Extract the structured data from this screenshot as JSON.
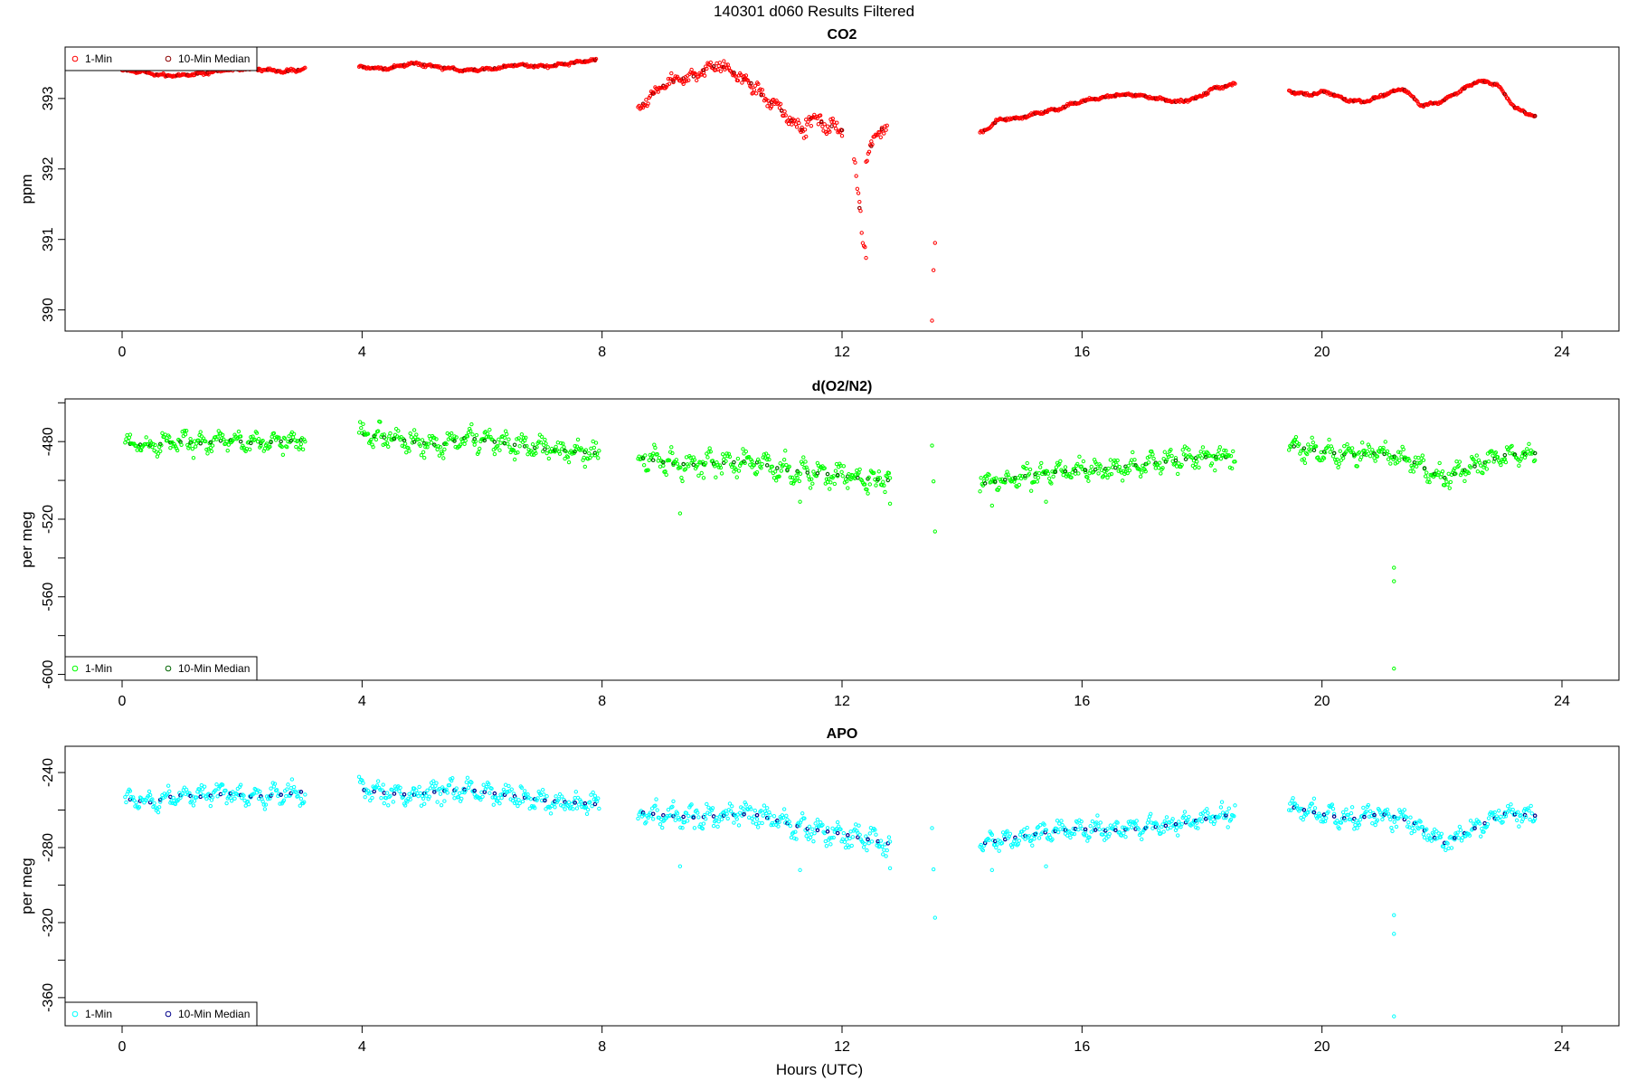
{
  "page_title": "140301   d060   Results Filtered",
  "xlabel": "Hours (UTC)",
  "chart_data": [
    {
      "type": "scatter",
      "title": "CO2",
      "ylabel": "ppm",
      "xlabel": "",
      "xlim": [
        -0.95,
        24.95
      ],
      "ylim": [
        389.7,
        393.73
      ],
      "x_ticks": [
        0,
        4,
        8,
        12,
        16,
        20,
        24
      ],
      "y_ticks": [
        390,
        391,
        392,
        393
      ],
      "grid": false,
      "legend_position": "top-left",
      "legend": [
        "1-Min",
        "10-Min Median"
      ],
      "colors": {
        "one_min": "#ff0000",
        "median": "#8b0000"
      },
      "segments": [
        {
          "x0": 0.0,
          "x1": 3.05,
          "y": [
            393.4,
            393.38,
            393.32,
            393.33,
            393.36,
            393.4,
            393.42,
            393.41,
            393.38,
            393.42
          ]
        },
        {
          "x0": 3.95,
          "x1": 7.9,
          "y": [
            393.45,
            393.42,
            393.5,
            393.45,
            393.4,
            393.42,
            393.48,
            393.45,
            393.5,
            393.55
          ]
        },
        {
          "x0": 8.6,
          "x1": 10.4,
          "y": [
            392.85,
            393.05,
            393.2,
            393.28,
            393.3,
            393.42,
            393.48,
            393.38,
            393.25
          ],
          "jitter": 0.12
        },
        {
          "x0": 10.4,
          "x1": 11.4,
          "y": [
            393.3,
            393.05,
            392.9,
            392.7,
            392.5
          ],
          "jitter": 0.15
        },
        {
          "x0": 11.4,
          "x1": 12.0,
          "y": [
            392.75,
            392.65,
            392.55
          ],
          "jitter": 0.15
        },
        {
          "x0": 12.2,
          "x1": 12.4,
          "y": [
            392.3,
            391.7,
            391.0,
            390.7
          ],
          "jitter": 0.25
        },
        {
          "x0": 12.4,
          "x1": 12.75,
          "y": [
            392.1,
            392.4,
            392.55,
            392.6
          ],
          "jitter": 0.12
        },
        {
          "x0": 13.5,
          "x1": 13.55,
          "y": [
            389.85,
            390.3,
            390.55,
            390.8,
            390.95
          ],
          "jitter": 0.02
        },
        {
          "x0": 14.3,
          "x1": 18.55,
          "y": [
            392.5,
            392.7,
            392.72,
            392.8,
            392.85,
            392.95,
            393.0,
            393.05,
            393.05,
            393.0,
            392.95,
            393.0,
            393.15,
            393.2
          ]
        },
        {
          "x0": 19.45,
          "x1": 23.55,
          "y": [
            393.1,
            393.05,
            393.1,
            392.98,
            392.95,
            393.05,
            393.15,
            392.9,
            392.95,
            393.1,
            393.25,
            393.2,
            392.85,
            392.75
          ]
        }
      ]
    },
    {
      "type": "scatter",
      "title": "d(O2/N2)",
      "ylabel": "per meg",
      "xlabel": "",
      "xlim": [
        -0.95,
        24.95
      ],
      "ylim": [
        -603,
        -458
      ],
      "x_ticks": [
        0,
        4,
        8,
        12,
        16,
        20,
        24
      ],
      "y_ticks": [
        -600,
        -580,
        -560,
        -540,
        -520,
        -500,
        -480,
        -460
      ],
      "y_tick_labels": [
        "-600",
        "",
        "-560",
        "",
        "-520",
        "",
        "-480",
        ""
      ],
      "grid": false,
      "legend_position": "bottom-left",
      "legend": [
        "1-Min",
        "10-Min Median"
      ],
      "colors": {
        "one_min": "#00ff00",
        "median": "#006400"
      },
      "segments": [
        {
          "x0": 0.05,
          "x1": 3.05,
          "y": [
            -481,
            -482,
            -480,
            -481,
            -479,
            -481,
            -480,
            -479
          ],
          "jitter": 7
        },
        {
          "x0": 3.95,
          "x1": 7.95,
          "y": [
            -476,
            -478,
            -480,
            -482,
            -478,
            -480,
            -482,
            -484,
            -485,
            -486
          ],
          "jitter": 8
        },
        {
          "x0": 8.6,
          "x1": 10.5,
          "y": [
            -488,
            -491,
            -492,
            -491,
            -490
          ],
          "jitter": 8
        },
        {
          "x0": 10.5,
          "x1": 12.8,
          "y": [
            -490,
            -494,
            -496,
            -497,
            -499,
            -500
          ],
          "jitter": 9
        },
        {
          "x0": 13.5,
          "x1": 13.55,
          "y": [
            -480,
            -497,
            -505,
            -525
          ],
          "jitter": 3
        },
        {
          "x0": 14.3,
          "x1": 18.55,
          "y": [
            -502,
            -499,
            -496,
            -495,
            -494,
            -492,
            -490,
            -488,
            -488
          ],
          "jitter": 7
        },
        {
          "x0": 19.45,
          "x1": 23.55,
          "y": [
            -482,
            -485,
            -487,
            -486,
            -490,
            -499,
            -493,
            -487,
            -486
          ],
          "jitter": 7
        }
      ],
      "outliers": [
        [
          21.2,
          -545
        ],
        [
          21.2,
          -552
        ],
        [
          21.2,
          -597
        ],
        [
          9.3,
          -517
        ],
        [
          11.3,
          -511
        ],
        [
          12.8,
          -512
        ],
        [
          14.5,
          -513
        ],
        [
          15.4,
          -511
        ]
      ]
    },
    {
      "type": "scatter",
      "title": "APO",
      "ylabel": "per meg",
      "xlabel": "Hours (UTC)",
      "xlim": [
        -0.95,
        24.95
      ],
      "ylim": [
        -375,
        -226
      ],
      "x_ticks": [
        0,
        4,
        8,
        12,
        16,
        20,
        24
      ],
      "y_ticks": [
        -360,
        -340,
        -320,
        -300,
        -280,
        -260,
        -240
      ],
      "y_tick_labels": [
        "-360",
        "",
        "-320",
        "",
        "-280",
        "",
        "-240"
      ],
      "grid": false,
      "legend_position": "bottom-left",
      "legend": [
        "1-Min",
        "10-Min Median"
      ],
      "colors": {
        "one_min": "#00ffff",
        "median": "#00008b"
      },
      "segments": [
        {
          "x0": 0.05,
          "x1": 3.05,
          "y": [
            -254,
            -256,
            -252,
            -253,
            -251,
            -253,
            -252,
            -250
          ],
          "jitter": 7
        },
        {
          "x0": 3.95,
          "x1": 7.95,
          "y": [
            -249,
            -251,
            -252,
            -250,
            -249,
            -251,
            -253,
            -255,
            -256,
            -257
          ],
          "jitter": 8
        },
        {
          "x0": 8.6,
          "x1": 10.5,
          "y": [
            -261,
            -263,
            -264,
            -263,
            -262
          ],
          "jitter": 8
        },
        {
          "x0": 10.5,
          "x1": 12.8,
          "y": [
            -262,
            -266,
            -270,
            -272,
            -275,
            -278
          ],
          "jitter": 9
        },
        {
          "x0": 13.5,
          "x1": 13.55,
          "y": [
            -268,
            -282,
            -300,
            -316
          ],
          "jitter": 3
        },
        {
          "x0": 14.3,
          "x1": 18.55,
          "y": [
            -278,
            -275,
            -272,
            -270,
            -271,
            -270,
            -268,
            -265,
            -262
          ],
          "jitter": 7
        },
        {
          "x0": 19.45,
          "x1": 23.55,
          "y": [
            -258,
            -262,
            -265,
            -262,
            -266,
            -278,
            -270,
            -262,
            -263
          ],
          "jitter": 7
        }
      ],
      "outliers": [
        [
          21.2,
          -316
        ],
        [
          21.2,
          -326
        ],
        [
          21.2,
          -370
        ],
        [
          9.3,
          -290
        ],
        [
          11.3,
          -292
        ],
        [
          12.8,
          -291
        ],
        [
          14.5,
          -292
        ],
        [
          15.4,
          -290
        ]
      ]
    }
  ]
}
